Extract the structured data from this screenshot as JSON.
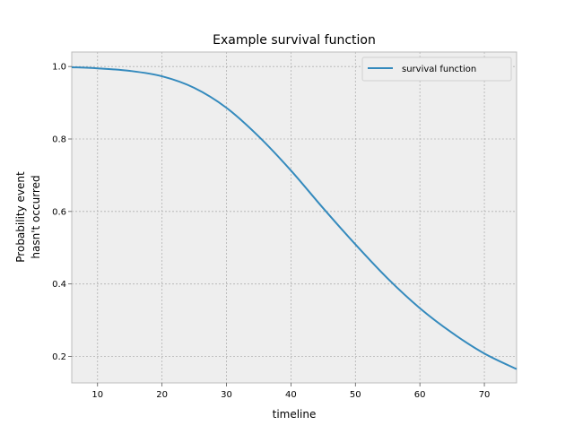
{
  "chart_data": {
    "type": "line",
    "title": "Example survival function",
    "xlabel": "timeline",
    "ylabel_lines": [
      "Probability event",
      "hasn't occurred"
    ],
    "xlim": [
      6,
      75
    ],
    "ylim": [
      0.127,
      1.04
    ],
    "xticks": [
      10,
      20,
      30,
      40,
      50,
      60,
      70
    ],
    "yticks": [
      0.2,
      0.4,
      0.6,
      0.8,
      1.0
    ],
    "ytick_labels": [
      "0.2",
      "0.4",
      "0.6",
      "0.8",
      "1.0"
    ],
    "grid": true,
    "legend_position": "top-right",
    "series": [
      {
        "name": "survival function",
        "color": "#348abd",
        "x": [
          6,
          10,
          15,
          20,
          25,
          30,
          35,
          40,
          45,
          50,
          55,
          60,
          65,
          70,
          75
        ],
        "y": [
          0.998,
          0.995,
          0.988,
          0.973,
          0.941,
          0.886,
          0.807,
          0.713,
          0.609,
          0.509,
          0.415,
          0.333,
          0.265,
          0.208,
          0.165
        ]
      }
    ]
  },
  "colors": {
    "plot_background": "#eeeeee",
    "grid": "#b2b2b2",
    "axes_edge": "#bcbcbc"
  }
}
